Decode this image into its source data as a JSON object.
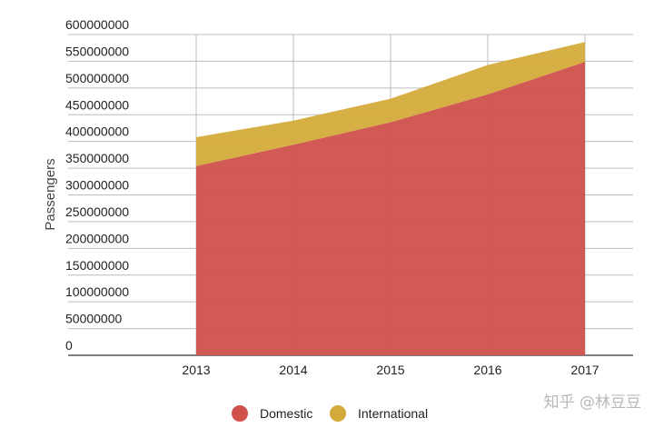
{
  "chart_data": {
    "type": "area",
    "stacked": true,
    "x": [
      "2013",
      "2014",
      "2015",
      "2016",
      "2017"
    ],
    "series": [
      {
        "name": "Domestic",
        "values": [
          354000000,
          394000000,
          436000000,
          488000000,
          549000000
        ],
        "color": "#d0514b"
      },
      {
        "name": "International",
        "values": [
          54000000,
          45000000,
          44000000,
          55000000,
          37000000
        ],
        "color": "#d4ab3b"
      }
    ],
    "ylabel": "Passengers",
    "ylim": [
      0,
      600000000
    ],
    "yticks": [
      "600000000",
      "550000000",
      "500000000",
      "450000000",
      "400000000",
      "350000000",
      "300000000",
      "250000000",
      "200000000",
      "150000000",
      "100000000",
      "50000000",
      "0"
    ],
    "grid": true,
    "legend": "bottom-center"
  },
  "watermark": "知乎 @林豆豆"
}
